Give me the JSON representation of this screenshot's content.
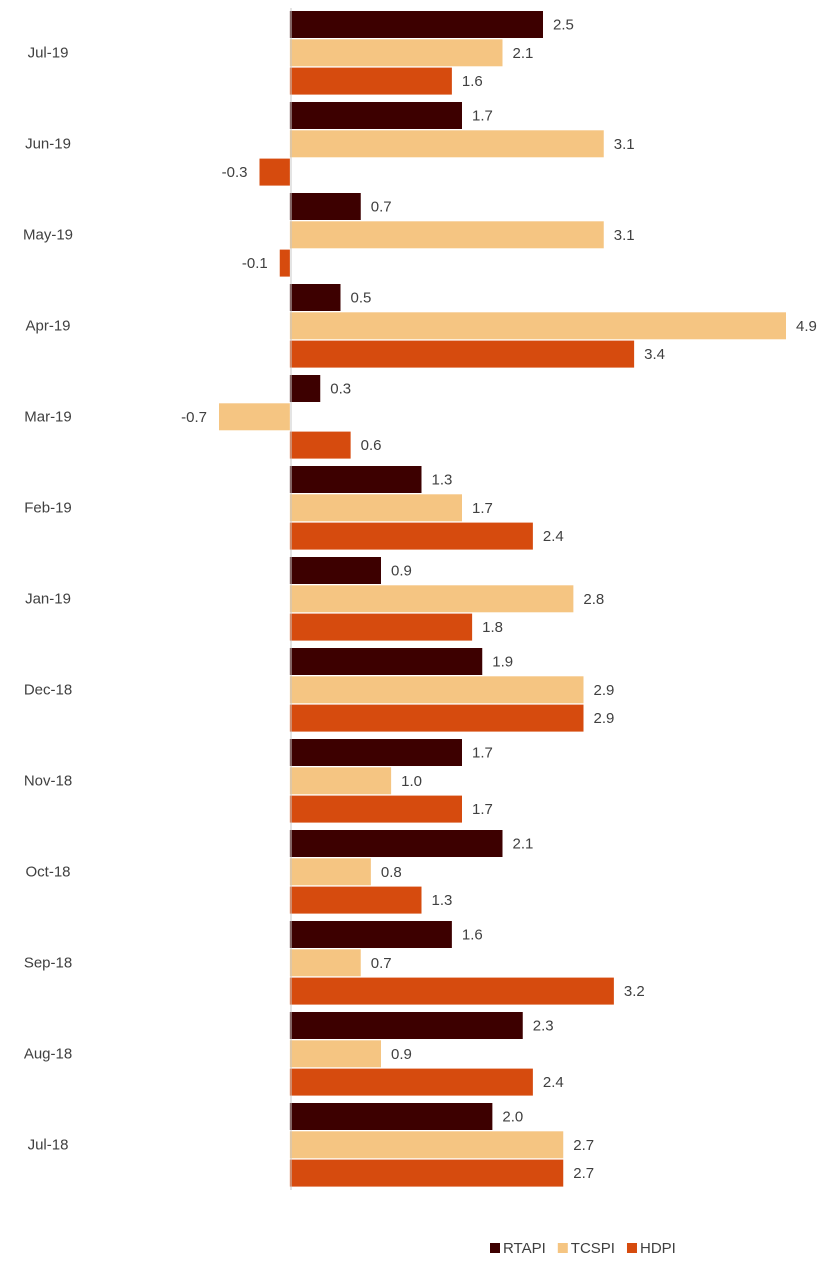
{
  "chart_data": {
    "type": "bar",
    "orientation": "horizontal",
    "categories": [
      "Jul-19",
      "Jun-19",
      "May-19",
      "Apr-19",
      "Mar-19",
      "Feb-19",
      "Jan-19",
      "Dec-18",
      "Nov-18",
      "Oct-18",
      "Sep-18",
      "Aug-18",
      "Jul-18"
    ],
    "series": [
      {
        "name": "RTAPI",
        "color": "#3d0000",
        "values": [
          2.5,
          1.7,
          0.7,
          0.5,
          0.3,
          1.3,
          0.9,
          1.9,
          1.7,
          2.1,
          1.6,
          2.3,
          2.0
        ],
        "value_labels": [
          "2.5",
          "1.7",
          "0.7",
          "0.5",
          "0.3",
          "1.3",
          "0.9",
          "1.9",
          "1.7",
          "2.1",
          "1.6",
          "2.3",
          "2.0"
        ]
      },
      {
        "name": "TCSPI",
        "color": "#f5c582",
        "values": [
          2.1,
          3.1,
          3.1,
          4.9,
          -0.7,
          1.7,
          2.8,
          2.9,
          1.0,
          0.8,
          0.7,
          0.9,
          2.7
        ],
        "value_labels": [
          "2.1",
          "3.1",
          "3.1",
          "4.9",
          "-0.7",
          "1.7",
          "2.8",
          "2.9",
          "1.0",
          "0.8",
          "0.7",
          "0.9",
          "2.7"
        ]
      },
      {
        "name": "HDPI",
        "color": "#d64b0e",
        "values": [
          1.6,
          -0.3,
          -0.1,
          3.4,
          0.6,
          2.4,
          1.8,
          2.9,
          1.7,
          1.3,
          3.2,
          2.4,
          2.7
        ],
        "value_labels": [
          "1.6",
          "-0.3",
          "-0.1",
          "3.4",
          "0.6",
          "2.4",
          "1.8",
          "2.9",
          "1.7",
          "1.3",
          "3.2",
          "2.4",
          "2.7"
        ]
      }
    ],
    "legend": "bottom"
  }
}
